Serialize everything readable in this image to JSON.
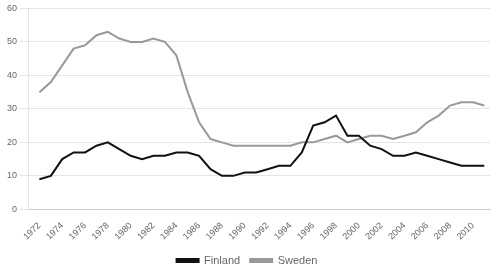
{
  "chart_data": {
    "type": "line",
    "x": [
      1972,
      1973,
      1974,
      1975,
      1976,
      1977,
      1978,
      1979,
      1980,
      1981,
      1982,
      1983,
      1984,
      1985,
      1986,
      1987,
      1988,
      1989,
      1990,
      1991,
      1992,
      1993,
      1994,
      1995,
      1996,
      1997,
      1998,
      1999,
      2000,
      2001,
      2002,
      2003,
      2004,
      2005,
      2006,
      2007,
      2008,
      2009,
      2010,
      2011
    ],
    "series": [
      {
        "name": "Finland",
        "color": "#111111",
        "values": [
          9,
          10,
          15,
          17,
          17,
          19,
          20,
          18,
          16,
          15,
          16,
          16,
          17,
          17,
          16,
          12,
          10,
          10,
          11,
          11,
          12,
          13,
          13,
          17,
          25,
          26,
          28,
          22,
          22,
          19,
          18,
          16,
          16,
          17,
          16,
          15,
          14,
          13,
          13,
          13
        ]
      },
      {
        "name": "Sweden",
        "color": "#999999",
        "values": [
          35,
          38,
          43,
          48,
          49,
          52,
          53,
          51,
          50,
          50,
          51,
          50,
          46,
          35,
          26,
          21,
          20,
          19,
          19,
          19,
          19,
          19,
          19,
          20,
          20,
          21,
          22,
          20,
          21,
          22,
          22,
          21,
          22,
          23,
          26,
          28,
          31,
          32,
          32,
          31
        ]
      }
    ],
    "xlim": [
      1971.0,
      2011.5
    ],
    "xticks": [
      1972,
      1974,
      1976,
      1978,
      1980,
      1982,
      1984,
      1986,
      1988,
      1990,
      1992,
      1994,
      1996,
      1998,
      2000,
      2002,
      2004,
      2006,
      2008,
      2010
    ],
    "ylim": [
      0,
      60
    ],
    "yticks": [
      0,
      10,
      20,
      30,
      40,
      50,
      60
    ],
    "grid": "y",
    "legend": "bottom"
  }
}
